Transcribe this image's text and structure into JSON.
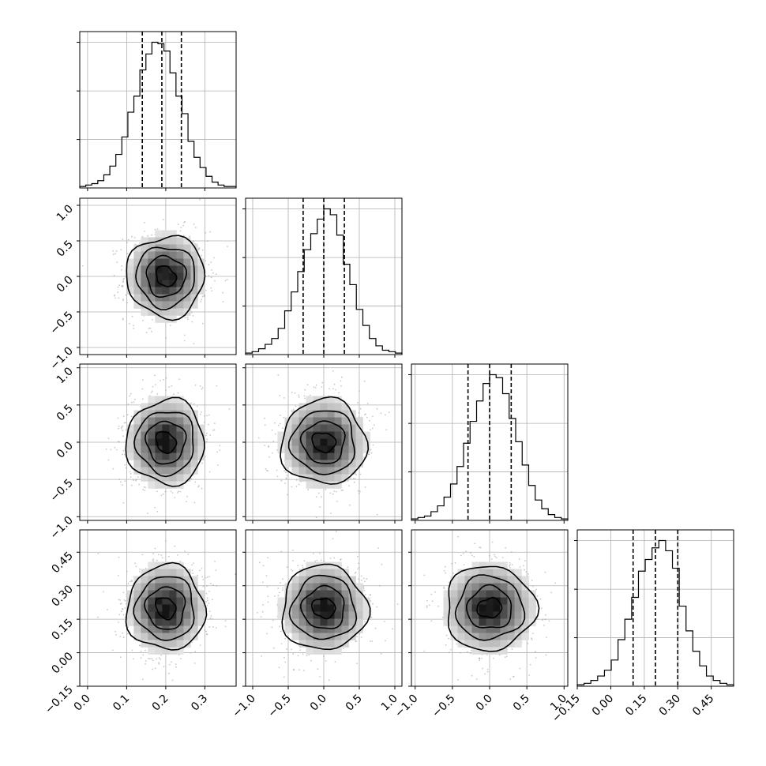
{
  "chart_data": {
    "type": "corner",
    "title": "",
    "n_params": 4,
    "params": [
      {
        "label": "",
        "mean": 0.2,
        "std": 0.05,
        "range": [
          -0.02,
          0.38
        ],
        "ticks": [
          0.0,
          0.1,
          0.2,
          0.3
        ],
        "tick_labels": [
          "0.0",
          "0.1",
          "0.2",
          "0.3"
        ],
        "quantiles": [
          0.14,
          0.19,
          0.24
        ],
        "hist_counts": [
          0.01,
          0.02,
          0.03,
          0.05,
          0.09,
          0.15,
          0.23,
          0.35,
          0.52,
          0.63,
          0.81,
          0.92,
          1.0,
          0.99,
          0.94,
          0.79,
          0.63,
          0.51,
          0.32,
          0.21,
          0.14,
          0.08,
          0.04,
          0.02,
          0.01,
          0.01
        ]
      },
      {
        "label": "",
        "mean": 0.0,
        "std": 0.3,
        "range": [
          -1.1,
          1.1
        ],
        "ticks": [
          -1.0,
          -0.5,
          0.0,
          0.5,
          1.0
        ],
        "tick_labels": [
          "−1.0",
          "−0.5",
          "0.0",
          "0.5",
          "1.0"
        ],
        "quantiles": [
          -0.29,
          0.0,
          0.29
        ],
        "hist_counts": [
          0.01,
          0.02,
          0.04,
          0.07,
          0.11,
          0.18,
          0.3,
          0.43,
          0.57,
          0.72,
          0.83,
          0.93,
          1.0,
          0.96,
          0.82,
          0.62,
          0.48,
          0.31,
          0.2,
          0.11,
          0.06,
          0.03,
          0.02,
          0.01
        ]
      },
      {
        "label": "",
        "mean": 0.0,
        "std": 0.3,
        "range": [
          -1.05,
          1.05
        ],
        "ticks": [
          -1.0,
          -0.5,
          0.0,
          0.5,
          1.0
        ],
        "tick_labels": [
          "−1.0",
          "−0.5",
          "0.0",
          "0.5",
          "1.0"
        ],
        "quantiles": [
          -0.29,
          0.0,
          0.29
        ],
        "hist_counts": [
          0.01,
          0.02,
          0.03,
          0.06,
          0.1,
          0.16,
          0.25,
          0.37,
          0.53,
          0.68,
          0.82,
          0.94,
          1.0,
          0.98,
          0.87,
          0.7,
          0.54,
          0.38,
          0.24,
          0.14,
          0.08,
          0.04,
          0.02,
          0.01
        ]
      },
      {
        "label": "",
        "mean": 0.2,
        "std": 0.1,
        "range": [
          -0.15,
          0.55
        ],
        "ticks": [
          -0.15,
          0.0,
          0.15,
          0.3,
          0.45
        ],
        "tick_labels": [
          "−0.15",
          "0.00",
          "0.15",
          "0.30",
          "0.45"
        ],
        "quantiles": [
          0.1,
          0.2,
          0.3
        ],
        "hist_counts": [
          0.01,
          0.02,
          0.04,
          0.07,
          0.11,
          0.18,
          0.32,
          0.46,
          0.61,
          0.79,
          0.87,
          0.95,
          1.0,
          0.93,
          0.81,
          0.55,
          0.38,
          0.24,
          0.14,
          0.07,
          0.04,
          0.02,
          0.01
        ]
      }
    ],
    "contour_levels_sigma": [
      0.5,
      1.0,
      1.5,
      2.0
    ],
    "grid": true,
    "legend": "none"
  }
}
